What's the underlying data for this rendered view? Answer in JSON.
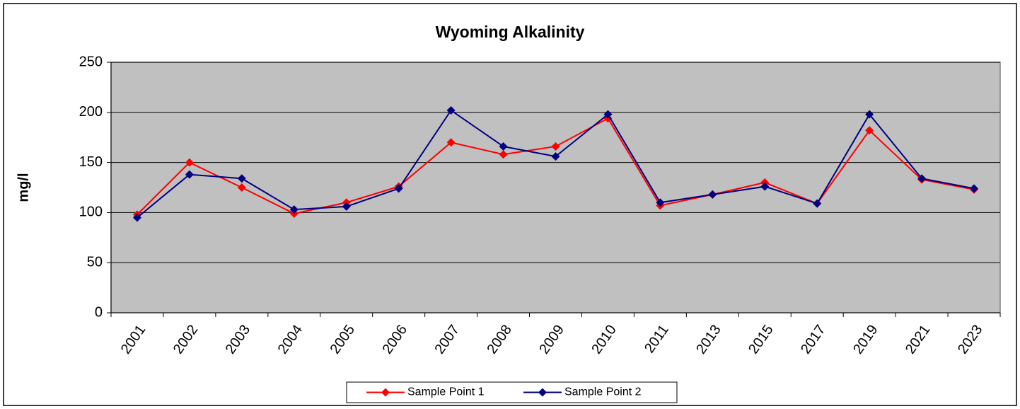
{
  "chart_data": {
    "type": "line",
    "title": "Wyoming Alkalinity",
    "y_label": "mg/l",
    "categories": [
      "2001",
      "2002",
      "2003",
      "2004",
      "2005",
      "2006",
      "2007",
      "2008",
      "2009",
      "2010",
      "2011",
      "2013",
      "2015",
      "2017",
      "2019",
      "2021",
      "2023"
    ],
    "series": [
      {
        "name": "Sample Point 1",
        "color": "#ff0000",
        "values": [
          98,
          150,
          125,
          99,
          110,
          126,
          170,
          158,
          166,
          194,
          107,
          118,
          130,
          109,
          182,
          133,
          123
        ]
      },
      {
        "name": "Sample Point 2",
        "color": "#000080",
        "values": [
          95,
          138,
          134,
          103,
          106,
          124,
          202,
          166,
          156,
          198,
          110,
          118,
          126,
          109,
          198,
          134,
          124
        ]
      }
    ],
    "ylim": [
      0,
      250
    ],
    "yticks": [
      0,
      50,
      100,
      150,
      200,
      250
    ],
    "grid": true,
    "legend": "bottom"
  }
}
